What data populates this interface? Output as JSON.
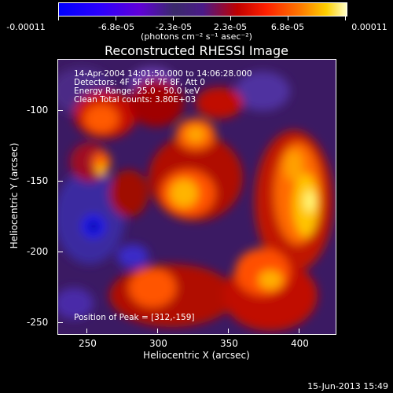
{
  "colorbar": {
    "labels": [
      "-0.00011",
      "-6.8e-05",
      "-2.3e-05",
      "2.3e-05",
      "6.8e-05",
      "0.00011"
    ],
    "units": "(photons cm⁻² s⁻¹ asec⁻²)"
  },
  "title": "Reconstructed RHESSI Image",
  "info": {
    "line1": "14-Apr-2004 14:01:50.000 to 14:06:28.000",
    "line2": "Detectors: 4F 5F 6F 7F 8F, Att 0",
    "line3": "Energy Range: 25.0 - 50.0 keV",
    "line4": "Clean     Total counts: 3.80E+03",
    "peak": "Position of Peak = [312,-159]"
  },
  "axes": {
    "xlabel": "Heliocentric X (arcsec)",
    "ylabel": "Heliocentric Y (arcsec)",
    "xrange": [
      230,
      425
    ],
    "yrange": [
      -260,
      -65
    ],
    "xticks": [
      "250",
      "300",
      "350",
      "400"
    ],
    "yticks": [
      "-100",
      "-150",
      "-200",
      "-250"
    ]
  },
  "footer": "15-Jun-2013 15:49",
  "colors": {
    "background": "#000000",
    "foreground": "#ffffff",
    "purple_base": "#3b1a63"
  }
}
